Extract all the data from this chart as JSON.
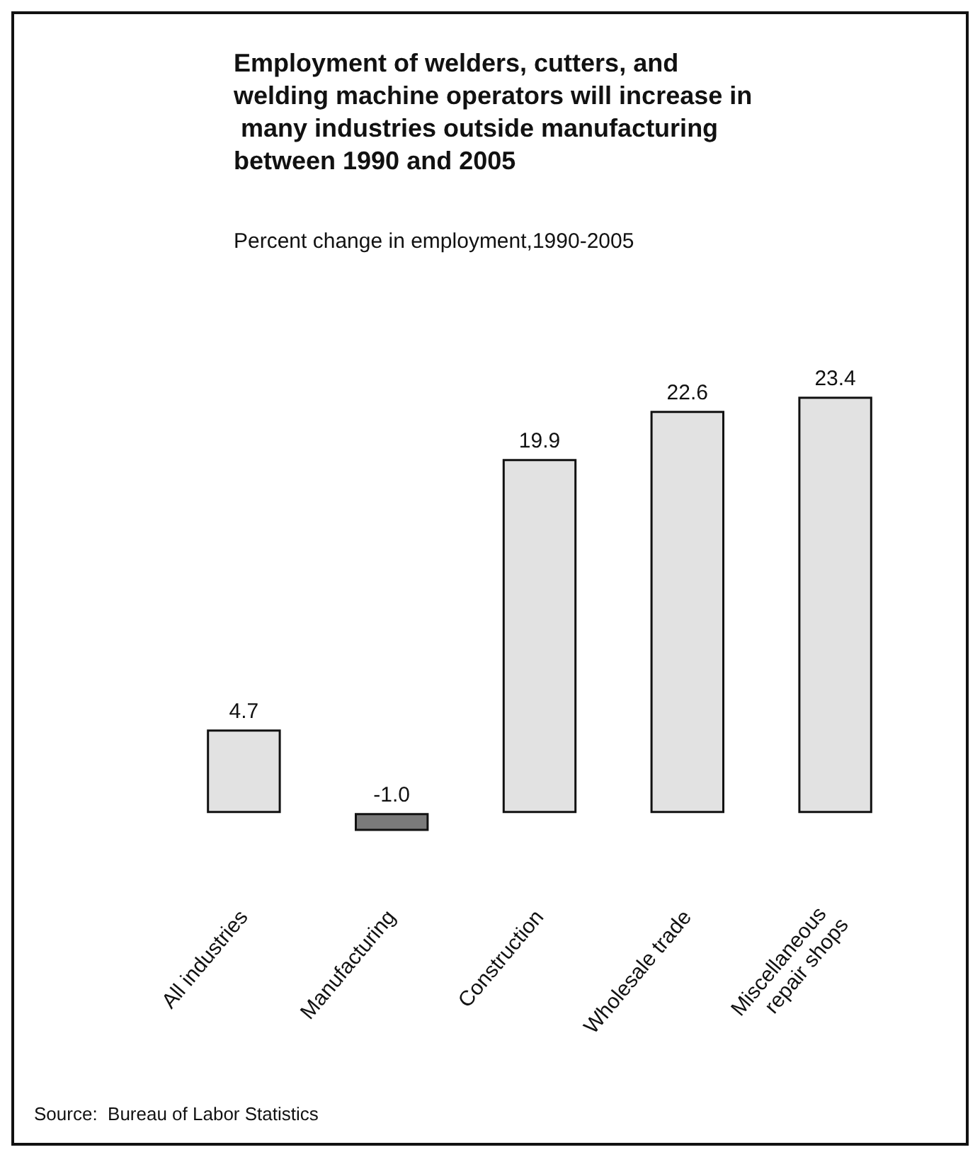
{
  "chart_data": {
    "type": "bar",
    "title": "Employment of welders, cutters, and welding machine operators will increase in many industries outside manufacturing between 1990 and 2005",
    "subtitle": "Percent change in employment,1990-2005",
    "categories": [
      "All industries",
      "Manufacturing",
      "Construction",
      "Wholesale trade",
      "Miscellaneous repair shops"
    ],
    "values": [
      4.7,
      -1.0,
      19.9,
      22.6,
      23.4
    ],
    "colors": [
      "#e2e2e2",
      "#7a7a7a",
      "#e2e2e2",
      "#e2e2e2",
      "#e2e2e2"
    ],
    "value_labels": [
      "4.7",
      "-1.0",
      "19.9",
      "22.6",
      "23.4"
    ],
    "tick_labels": "x",
    "annotations": [
      "Source:  Bureau of Labor Statistics"
    ]
  }
}
